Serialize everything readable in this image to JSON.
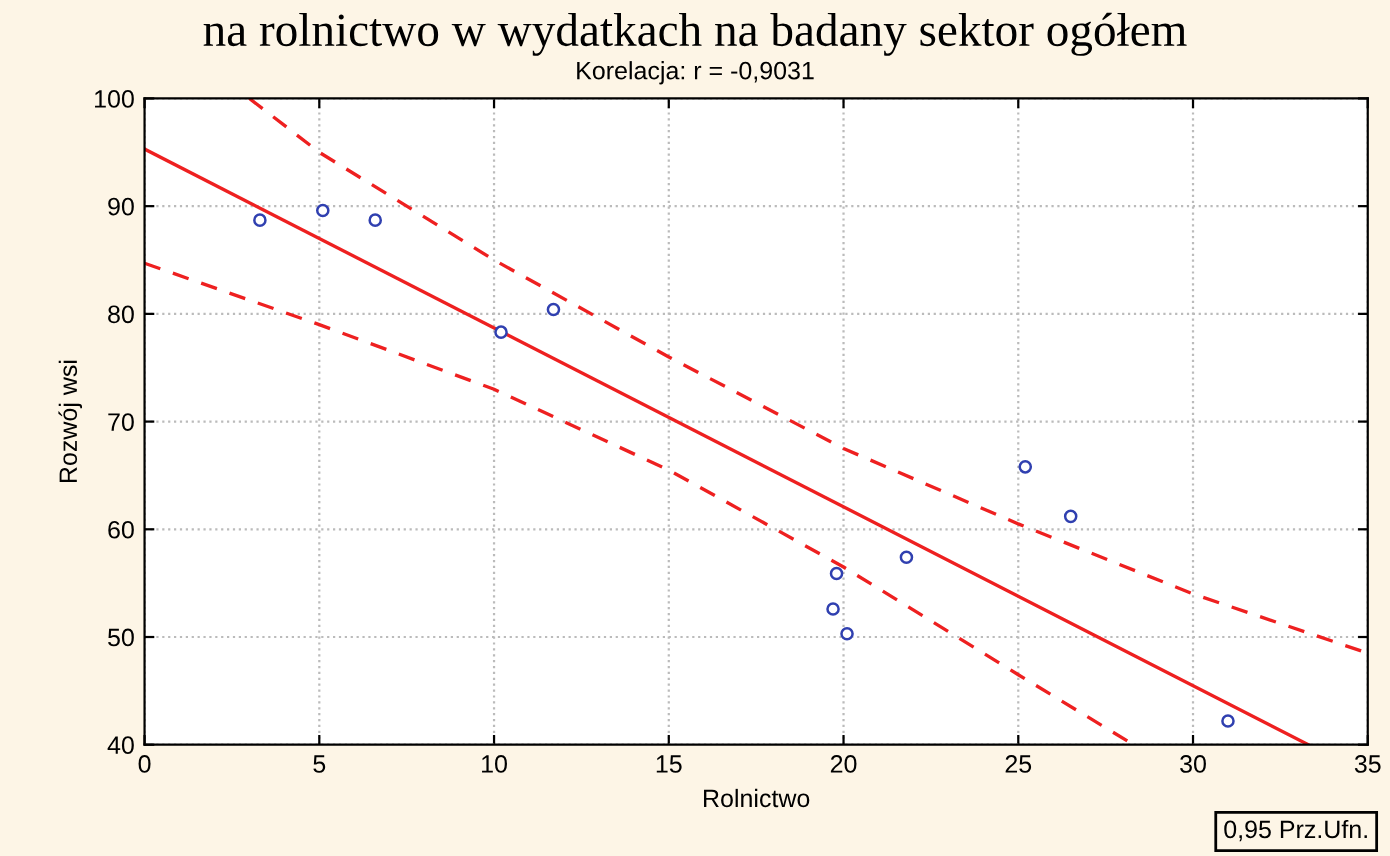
{
  "chart_data": {
    "type": "scatter",
    "title": "na rolnictwo w wydatkach na badany sektor ogółem",
    "subtitle": "Korelacja: r = -0,9031",
    "xlabel": "Rolnictwo",
    "ylabel": "Rozwój wsi",
    "annotations": [
      "0,95 Prz.Ufn."
    ],
    "xlim": [
      0,
      35
    ],
    "ylim": [
      40,
      100
    ],
    "xticks": [
      0,
      5,
      10,
      15,
      20,
      25,
      30,
      35
    ],
    "yticks": [
      40,
      50,
      60,
      70,
      80,
      90,
      100
    ],
    "grid": true,
    "series": [
      {
        "type": "scatter",
        "marker": "circle",
        "color": "#3040b0",
        "x": [
          3.3,
          5.1,
          6.6,
          10.2,
          11.7,
          19.8,
          19.7,
          20.1,
          21.8,
          25.2,
          26.5,
          31.0
        ],
        "values": [
          88.7,
          89.6,
          88.7,
          78.3,
          80.4,
          55.9,
          52.6,
          50.3,
          57.4,
          65.8,
          61.2,
          42.2
        ]
      },
      {
        "type": "line",
        "color": "#ee2020",
        "line_style": "solid",
        "x": [
          0,
          33.3
        ],
        "values": [
          95.3,
          40
        ]
      },
      {
        "type": "line",
        "color": "#ee2020",
        "line_style": "dashed",
        "x": [
          3,
          5,
          10,
          15,
          20,
          25,
          30,
          35
        ],
        "values": [
          100,
          95,
          85,
          76,
          67.5,
          60.5,
          54,
          48.5
        ]
      },
      {
        "type": "line",
        "color": "#ee2020",
        "line_style": "dashed",
        "x": [
          0,
          5,
          10,
          15,
          20,
          25,
          28.3
        ],
        "values": [
          84.7,
          79,
          73,
          65.5,
          56.5,
          46.5,
          40
        ]
      }
    ]
  }
}
